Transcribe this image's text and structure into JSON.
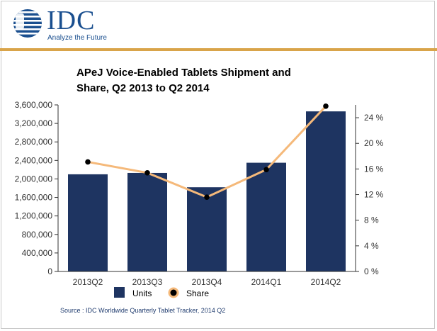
{
  "header": {
    "logo_name": "IDC",
    "logo_tagline": "Analyze the Future"
  },
  "chart_data": {
    "type": "bar",
    "title": "APeJ Voice-Enabled Tablets Shipment and Share, Q2 2013 to Q2 2014",
    "title_lines": [
      "APeJ Voice-Enabled Tablets Shipment and",
      "Share, Q2 2013 to Q2 2014"
    ],
    "categories": [
      "2013Q2",
      "2013Q3",
      "2013Q4",
      "2014Q1",
      "2014Q2"
    ],
    "series": [
      {
        "name": "Units",
        "type": "bar",
        "axis": "left",
        "color": "#1e3461",
        "values": [
          2100000,
          2130000,
          1820000,
          2350000,
          3460000
        ]
      },
      {
        "name": "Share",
        "type": "line",
        "axis": "right",
        "color": "#f5b97a",
        "marker_color": "#000000",
        "values": [
          17.1,
          15.4,
          11.6,
          15.9,
          25.8
        ]
      }
    ],
    "y_left": {
      "min": 0,
      "max": 3600000,
      "step": 400000,
      "tick_labels": [
        "0",
        "400,000",
        "800,000",
        "1,200,000",
        "1,600,000",
        "2,000,000",
        "2,400,000",
        "2,800,000",
        "3,200,000",
        "3,600,000"
      ]
    },
    "y_right": {
      "min": 0,
      "max": 26,
      "step": 4,
      "tick_values": [
        0,
        4,
        8,
        12,
        16,
        20,
        24
      ],
      "tick_labels": [
        "0 %",
        "4 %",
        "8 %",
        "12 %",
        "16 %",
        "20 %",
        "24 %"
      ]
    },
    "grid": false,
    "legend": {
      "placement": "bottom",
      "items": [
        {
          "label": "Units",
          "symbol": "square"
        },
        {
          "label": "Share",
          "symbol": "line-marker"
        }
      ]
    }
  },
  "source": "Source : IDC Worldwide Quarterly Tablet Tracker, 2014 Q2"
}
